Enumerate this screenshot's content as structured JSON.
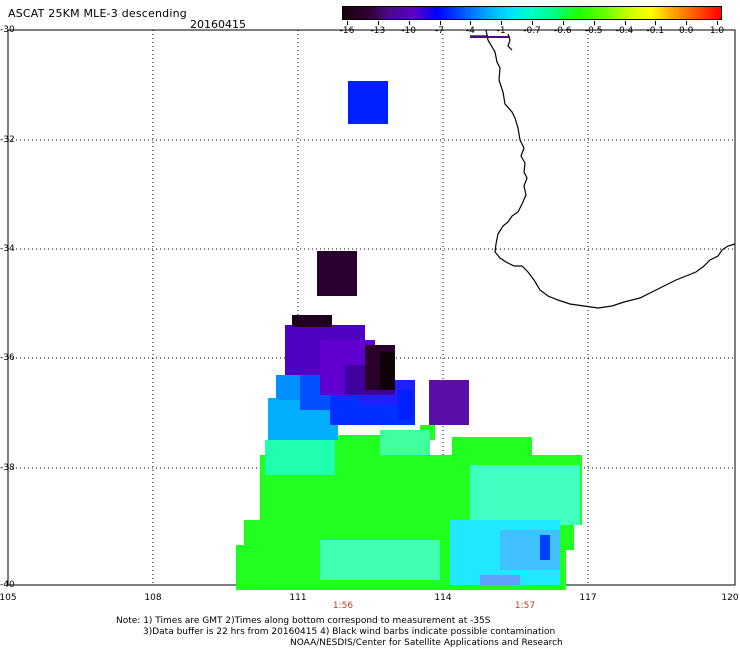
{
  "header": {
    "title": "ASCAT 25KM MLE-3 descending",
    "date": "20160415"
  },
  "colorbar": {
    "labels": [
      "-16",
      "-13",
      "-10",
      "-7",
      "-4",
      "-1",
      "-0.7",
      "-0.6",
      "-0.5",
      "-0.4",
      "-0.1",
      "0.0",
      "1.0"
    ],
    "colors": [
      "#1a0010",
      "#300030",
      "#4b0a8c",
      "#5a00c8",
      "#0000ff",
      "#0050ff",
      "#00a0ff",
      "#00e0ff",
      "#00ffc0",
      "#00ff80",
      "#20ff00",
      "#60ff00",
      "#c0ff00",
      "#ffff00",
      "#ffa000",
      "#ff5000",
      "#ff0000"
    ]
  },
  "axes": {
    "lat_labels": [
      "-30",
      "-32",
      "-34",
      "-36",
      "-38",
      "-40"
    ],
    "lon_labels": [
      "105",
      "108",
      "111",
      "114",
      "117",
      "120"
    ]
  },
  "times": [
    "1:56",
    "1:57"
  ],
  "notes": {
    "line1": "Note: 1) Times are GMT 2)Times along bottom correspond to measurement at -35S",
    "line2": "3)Data buffer is 22 hrs from 20160415 4) Black wind barbs indicate possible contamination",
    "line3": "NOAA/NESDIS/Center for Satellite Applications and Research"
  },
  "palette": {
    "green": "#20ff20",
    "cyan": "#00ffd0",
    "lightblue": "#00b0ff",
    "blue": "#0030ff",
    "purple": "#5000b0",
    "darkpurple": "#300040",
    "black": "#100008",
    "grid": "#000000"
  }
}
